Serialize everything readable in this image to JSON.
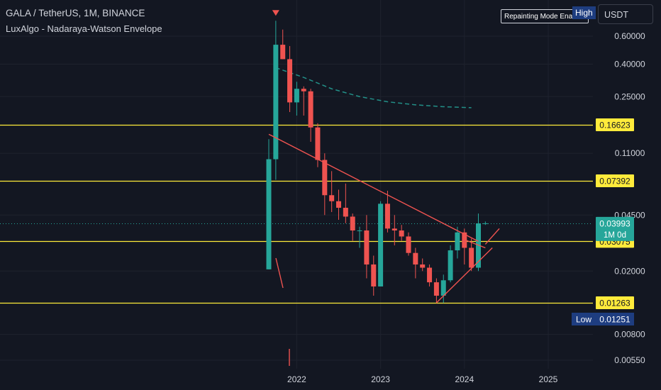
{
  "header": {
    "title": "GALA / TetherUS, 1M, BINANCE",
    "indicator": "LuxAlgo - Nadaraya-Watson Envelope"
  },
  "toolbar": {
    "currency": "USDT",
    "tooltip_text": "Repainting Mode Ena",
    "high_label": "High"
  },
  "colors": {
    "background": "#131722",
    "up": "#26a69a",
    "down": "#ef5350",
    "level_line": "#ffeb3b",
    "trendline": "#ef5350",
    "envelope": "#26a69a",
    "last_price": "#26a69a"
  },
  "chart_data": {
    "type": "candlestick",
    "interval": "1M",
    "y_scale": "log",
    "ylim": [
      0.0047,
      0.8
    ],
    "y_ticks": [
      "0.60000",
      "0.40000",
      "0.25000",
      "0.11000",
      "0.04500",
      "0.02000",
      "0.00800",
      "0.00550"
    ],
    "x_ticks": [
      "2022",
      "2023",
      "2024",
      "2025"
    ],
    "candles": [
      {
        "date": "2021-09",
        "open": 0.0205,
        "high": 0.135,
        "low": 0.0205,
        "close": 0.101
      },
      {
        "date": "2021-10",
        "open": 0.101,
        "high": 0.75,
        "low": 0.075,
        "close": 0.53
      },
      {
        "date": "2021-11",
        "open": 0.53,
        "high": 0.66,
        "low": 0.43,
        "close": 0.43
      },
      {
        "date": "2021-12",
        "open": 0.43,
        "high": 0.52,
        "low": 0.2,
        "close": 0.23
      },
      {
        "date": "2022-01",
        "open": 0.23,
        "high": 0.31,
        "low": 0.19,
        "close": 0.28
      },
      {
        "date": "2022-02",
        "open": 0.28,
        "high": 0.29,
        "low": 0.19,
        "close": 0.27
      },
      {
        "date": "2022-03",
        "open": 0.27,
        "high": 0.28,
        "low": 0.13,
        "close": 0.16
      },
      {
        "date": "2022-04",
        "open": 0.16,
        "high": 0.17,
        "low": 0.09,
        "close": 0.1
      },
      {
        "date": "2022-05",
        "open": 0.1,
        "high": 0.11,
        "low": 0.045,
        "close": 0.06
      },
      {
        "date": "2022-06",
        "open": 0.06,
        "high": 0.085,
        "low": 0.047,
        "close": 0.055
      },
      {
        "date": "2022-07",
        "open": 0.055,
        "high": 0.065,
        "low": 0.042,
        "close": 0.05
      },
      {
        "date": "2022-08",
        "open": 0.05,
        "high": 0.071,
        "low": 0.04,
        "close": 0.044
      },
      {
        "date": "2022-09",
        "open": 0.044,
        "high": 0.046,
        "low": 0.031,
        "close": 0.036
      },
      {
        "date": "2022-10",
        "open": 0.036,
        "high": 0.038,
        "low": 0.028,
        "close": 0.036
      },
      {
        "date": "2022-11",
        "open": 0.036,
        "high": 0.045,
        "low": 0.018,
        "close": 0.022
      },
      {
        "date": "2022-12",
        "open": 0.022,
        "high": 0.025,
        "low": 0.014,
        "close": 0.016
      },
      {
        "date": "2023-01",
        "open": 0.016,
        "high": 0.055,
        "low": 0.016,
        "close": 0.053
      },
      {
        "date": "2023-02",
        "open": 0.053,
        "high": 0.064,
        "low": 0.035,
        "close": 0.037
      },
      {
        "date": "2023-03",
        "open": 0.037,
        "high": 0.045,
        "low": 0.029,
        "close": 0.036
      },
      {
        "date": "2023-04",
        "open": 0.036,
        "high": 0.039,
        "low": 0.031,
        "close": 0.033
      },
      {
        "date": "2023-05",
        "open": 0.033,
        "high": 0.035,
        "low": 0.025,
        "close": 0.026
      },
      {
        "date": "2023-06",
        "open": 0.026,
        "high": 0.028,
        "low": 0.018,
        "close": 0.022
      },
      {
        "date": "2023-07",
        "open": 0.022,
        "high": 0.024,
        "low": 0.02,
        "close": 0.021
      },
      {
        "date": "2023-08",
        "open": 0.021,
        "high": 0.022,
        "low": 0.016,
        "close": 0.017
      },
      {
        "date": "2023-09",
        "open": 0.017,
        "high": 0.018,
        "low": 0.0126,
        "close": 0.014
      },
      {
        "date": "2023-10",
        "open": 0.014,
        "high": 0.019,
        "low": 0.0126,
        "close": 0.0175
      },
      {
        "date": "2023-11",
        "open": 0.0175,
        "high": 0.029,
        "low": 0.017,
        "close": 0.027
      },
      {
        "date": "2023-12",
        "open": 0.027,
        "high": 0.038,
        "low": 0.024,
        "close": 0.035
      },
      {
        "date": "2024-01",
        "open": 0.035,
        "high": 0.037,
        "low": 0.022,
        "close": 0.028
      },
      {
        "date": "2024-02",
        "open": 0.028,
        "high": 0.032,
        "low": 0.02,
        "close": 0.021
      },
      {
        "date": "2024-03",
        "open": 0.021,
        "high": 0.046,
        "low": 0.02,
        "close": 0.0399
      },
      {
        "date": "2024-04",
        "open": 0.0399,
        "high": 0.041,
        "low": 0.039,
        "close": 0.03993
      }
    ],
    "horizontal_levels": [
      {
        "value": 0.16623,
        "label": "0.16623"
      },
      {
        "value": 0.07392,
        "label": "0.07392"
      },
      {
        "value": 0.03075,
        "label": "0.03075"
      },
      {
        "value": 0.01263,
        "label": "0.01263"
      }
    ],
    "last_price": {
      "value": 0.03993,
      "label": "0.03993",
      "timer": "1M 0d"
    },
    "low_marker": {
      "label": "Low",
      "value": "0.01251"
    },
    "trendlines": [
      {
        "from": {
          "date": "2021-09",
          "value": 0.145
        },
        "to": {
          "date": "2024-03",
          "value": 0.03075
        }
      },
      {
        "from": {
          "date": "2023-09",
          "value": 0.01263
        },
        "to": {
          "date": "2024-05",
          "value": 0.028
        }
      },
      {
        "from": {
          "date": "2024-01",
          "value": 0.0315
        },
        "to": {
          "date": "2024-04",
          "value": 0.028
        }
      },
      {
        "from": {
          "date": "2024-04",
          "value": 0.0295
        },
        "to": {
          "date": "2024-06",
          "value": 0.037
        }
      }
    ],
    "envelope": [
      {
        "date": "2021-10",
        "value": 0.38
      },
      {
        "date": "2022-02",
        "value": 0.33
      },
      {
        "date": "2022-06",
        "value": 0.28
      },
      {
        "date": "2022-10",
        "value": 0.25
      },
      {
        "date": "2023-02",
        "value": 0.232
      },
      {
        "date": "2023-06",
        "value": 0.222
      },
      {
        "date": "2023-10",
        "value": 0.216
      },
      {
        "date": "2024-02",
        "value": 0.213
      }
    ],
    "markers": [
      {
        "date": "2021-10",
        "type": "down-triangle",
        "position": "above-high"
      }
    ],
    "time_axis": {
      "start": "2021-09",
      "months_span": 48
    }
  }
}
